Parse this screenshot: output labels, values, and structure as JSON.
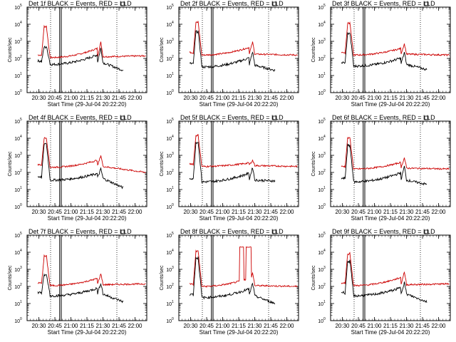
{
  "chart_data": {
    "type": "line",
    "x_start_label": "Start Time (29-Jul-04 20:22:20)",
    "ylabel": "Counts/sec",
    "y_scale": "log",
    "ylim": [
      1,
      100000
    ],
    "y_ticks": [
      {
        "value": 1,
        "base": "10",
        "exp": "0"
      },
      {
        "value": 10,
        "base": "10",
        "exp": "1"
      },
      {
        "value": 100,
        "base": "10",
        "exp": "2"
      },
      {
        "value": 1000,
        "base": "10",
        "exp": "3"
      },
      {
        "value": 10000,
        "base": "10",
        "exp": "4"
      },
      {
        "value": 100000,
        "base": "10",
        "exp": "5"
      }
    ],
    "x_range_minutes": [
      1219,
      1331
    ],
    "x_ticks": [
      {
        "label": "20:30",
        "minute": 1230
      },
      {
        "label": "20:45",
        "minute": 1245
      },
      {
        "label": "21:00",
        "minute": 1260
      },
      {
        "label": "21:15",
        "minute": 1275
      },
      {
        "label": "21:30",
        "minute": 1290
      },
      {
        "label": "21:45",
        "minute": 1305
      },
      {
        "label": "22:00",
        "minute": 1320
      }
    ],
    "dotted_lines_minutes": [
      1241,
      1303
    ],
    "solid_double_lines_minutes": [
      1249.5,
      1251
    ],
    "series_names": [
      "Events",
      "LLD"
    ],
    "series_colors": {
      "Events": "#000000",
      "LLD": "#cc0000"
    },
    "panels": [
      {
        "title": "Det 1f BLACK = Events, RED = LLD",
        "events_base": 1.8,
        "lld_base": 2.15,
        "events_peak": 2.7,
        "lld_peak": 3.9,
        "second_events": 2.6,
        "second_lld": 2.95,
        "lld_end": 2.15,
        "events_end": 1.3
      },
      {
        "title": "Det 2f BLACK = Events, RED = LLD",
        "events_base": 1.65,
        "lld_base": 2.3,
        "events_peak": 3.6,
        "lld_peak": 4.15,
        "second_events": 2.4,
        "second_lld": 2.95,
        "lld_end": 2.2,
        "events_end": 1.3
      },
      {
        "title": "Det 3f BLACK = Events, RED = LLD",
        "events_base": 1.7,
        "lld_base": 2.3,
        "events_peak": 3.5,
        "lld_peak": 4.1,
        "second_events": 2.35,
        "second_lld": 2.85,
        "lld_end": 2.2,
        "events_end": 1.35
      },
      {
        "title": "Det 4f BLACK = Events, RED = LLD",
        "events_base": 1.7,
        "lld_base": 2.4,
        "events_peak": 3.7,
        "lld_peak": 4.05,
        "second_events": 2.2,
        "second_lld": 3.0,
        "lld_end": 2.0,
        "events_end": 1.1
      },
      {
        "title": "Det 5f BLACK = Events, RED = LLD",
        "events_base": 1.6,
        "lld_base": 2.45,
        "events_peak": 3.8,
        "lld_peak": 4.2,
        "second_events": 2.3,
        "second_lld": 2.7,
        "lld_end": 2.35,
        "events_end": 1.5
      },
      {
        "title": "Det 6f BLACK = Events, RED = LLD",
        "events_base": 1.6,
        "lld_base": 2.3,
        "events_peak": 3.6,
        "lld_peak": 4.05,
        "second_events": 2.35,
        "second_lld": 2.85,
        "lld_end": 2.2,
        "events_end": 1.3
      },
      {
        "title": "Det 7f BLACK = Events, RED = LLD",
        "events_base": 1.6,
        "lld_base": 2.15,
        "events_peak": 2.7,
        "lld_peak": 3.8,
        "second_events": 2.2,
        "second_lld": 2.75,
        "lld_end": 2.15,
        "events_end": 1.1
      },
      {
        "title": "Det 8f BLACK = Events, RED = LLD",
        "events_base": 1.5,
        "lld_base": 2.1,
        "events_peak": 3.7,
        "lld_peak": 4.1,
        "second_events": 2.2,
        "second_lld": 2.8,
        "lld_end": 2.0,
        "events_end": 1.0,
        "plateau_lld": 4.3
      },
      {
        "title": "Det 9f BLACK = Events, RED = LLD",
        "events_base": 1.6,
        "lld_base": 2.15,
        "events_peak": 3.5,
        "lld_peak": 3.95,
        "second_events": 2.25,
        "second_lld": 2.85,
        "lld_end": 2.15,
        "events_end": 1.1
      }
    ]
  }
}
